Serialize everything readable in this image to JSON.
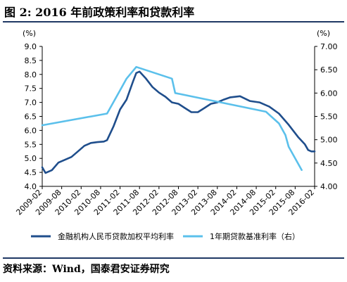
{
  "title": "图 2: 2016 年前政策利率和贷款利率",
  "source": "资料来源：Wind，国泰君安证券研究",
  "colors": {
    "dark_series": "#1f4e8c",
    "light_series": "#5bc0eb",
    "rule": "#1f3864"
  },
  "chart_data": {
    "type": "line",
    "left_axis": {
      "unit_label": "(%)",
      "ylim": [
        4.0,
        9.0
      ],
      "ticks": [
        "4.0",
        "4.5",
        "5.0",
        "5.5",
        "6.0",
        "6.5",
        "7.0",
        "7.5",
        "8.0",
        "8.5",
        "9.0"
      ]
    },
    "right_axis": {
      "unit_label": "(%)",
      "ylim": [
        4.0,
        7.0
      ],
      "ticks": [
        "4.00",
        "4.50",
        "5.00",
        "5.50",
        "6.00",
        "6.50",
        "7.00"
      ]
    },
    "x_axis": {
      "range": [
        "2009-02",
        "2016-02"
      ],
      "ticks": [
        "2009-02",
        "2009-08",
        "2010-02",
        "2010-08",
        "2011-02",
        "2011-08",
        "2012-02",
        "2012-08",
        "2013-02",
        "2013-08",
        "2014-02",
        "2014-08",
        "2015-02",
        "2015-08",
        "2016-02"
      ]
    },
    "grid": false,
    "legend": "bottom",
    "series": [
      {
        "name": "金融机构人民币贷款加权平均利率",
        "axis": "left",
        "color": "#1f4e8c",
        "points": [
          [
            "2009-02",
            4.68
          ],
          [
            "2009-03",
            4.48
          ],
          [
            "2009-05",
            4.58
          ],
          [
            "2009-07",
            4.85
          ],
          [
            "2009-09",
            4.95
          ],
          [
            "2009-11",
            5.05
          ],
          [
            "2010-01",
            5.25
          ],
          [
            "2010-03",
            5.45
          ],
          [
            "2010-05",
            5.55
          ],
          [
            "2010-07",
            5.58
          ],
          [
            "2010-09",
            5.6
          ],
          [
            "2010-10",
            5.65
          ],
          [
            "2010-12",
            6.15
          ],
          [
            "2011-02",
            6.75
          ],
          [
            "2011-04",
            7.1
          ],
          [
            "2011-06",
            7.75
          ],
          [
            "2011-07",
            8.05
          ],
          [
            "2011-08",
            8.1
          ],
          [
            "2011-10",
            7.85
          ],
          [
            "2011-12",
            7.55
          ],
          [
            "2012-02",
            7.35
          ],
          [
            "2012-04",
            7.2
          ],
          [
            "2012-06",
            7.0
          ],
          [
            "2012-08",
            6.95
          ],
          [
            "2012-10",
            6.8
          ],
          [
            "2012-12",
            6.65
          ],
          [
            "2013-02",
            6.65
          ],
          [
            "2013-04",
            6.8
          ],
          [
            "2013-06",
            6.95
          ],
          [
            "2013-08",
            7.0
          ],
          [
            "2013-10",
            7.1
          ],
          [
            "2013-12",
            7.18
          ],
          [
            "2014-03",
            7.22
          ],
          [
            "2014-06",
            7.05
          ],
          [
            "2014-09",
            7.0
          ],
          [
            "2014-12",
            6.85
          ],
          [
            "2015-03",
            6.6
          ],
          [
            "2015-06",
            6.2
          ],
          [
            "2015-09",
            5.75
          ],
          [
            "2015-11",
            5.5
          ],
          [
            "2015-12",
            5.3
          ],
          [
            "2016-01",
            5.25
          ],
          [
            "2016-02",
            5.25
          ]
        ]
      },
      {
        "name": "1年期贷款基准利率（右）",
        "axis": "right",
        "color": "#5bc0eb",
        "points": [
          [
            "2009-02",
            5.31
          ],
          [
            "2010-10",
            5.56
          ],
          [
            "2010-12",
            5.81
          ],
          [
            "2011-02",
            6.06
          ],
          [
            "2011-04",
            6.31
          ],
          [
            "2011-07",
            6.56
          ],
          [
            "2012-06",
            6.31
          ],
          [
            "2012-07",
            6.0
          ],
          [
            "2014-11",
            5.6
          ],
          [
            "2015-03",
            5.35
          ],
          [
            "2015-05",
            5.1
          ],
          [
            "2015-06",
            4.85
          ],
          [
            "2015-08",
            4.6
          ],
          [
            "2015-10",
            4.35
          ]
        ]
      }
    ]
  }
}
